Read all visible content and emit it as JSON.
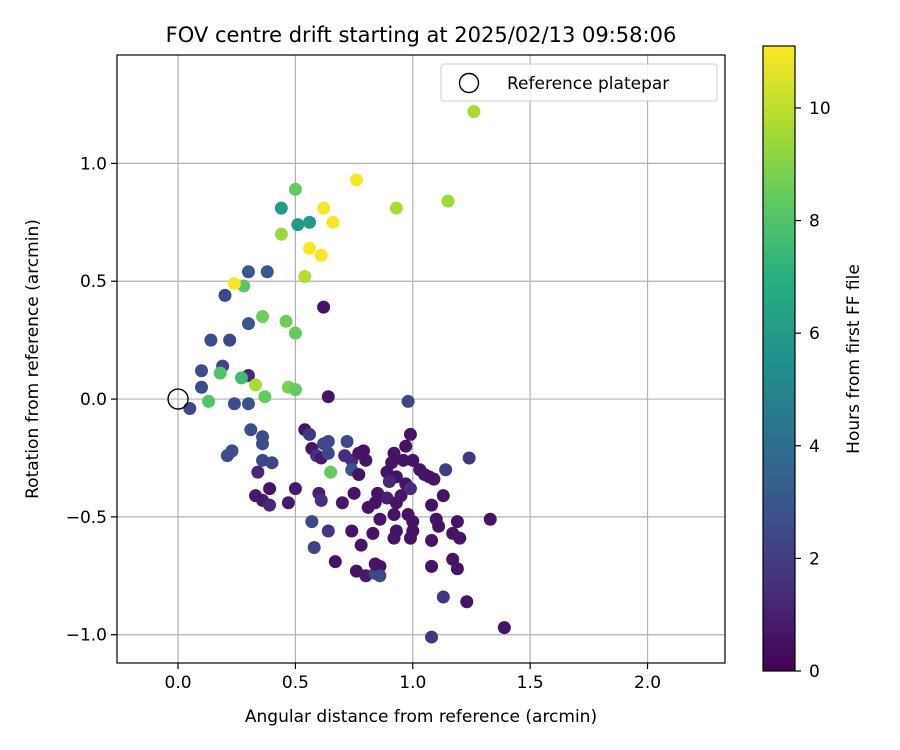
{
  "chart_data": {
    "type": "scatter",
    "title": "FOV centre drift starting at 2025/02/13 09:58:06",
    "xlabel": "Angular distance from reference (arcmin)",
    "ylabel": "Rotation from reference (arcmin)",
    "xlim": [
      -0.26,
      2.33
    ],
    "ylim": [
      -1.12,
      1.46
    ],
    "xticks": [
      0.0,
      0.5,
      1.0,
      1.5,
      2.0
    ],
    "xtick_labels": [
      "0.0",
      "0.5",
      "1.0",
      "1.5",
      "2.0"
    ],
    "yticks": [
      -1.0,
      -0.5,
      0.0,
      0.5,
      1.0
    ],
    "ytick_labels": [
      "−1.0",
      "−0.5",
      "0.0",
      "0.5",
      "1.0"
    ],
    "grid": true,
    "legend": {
      "placement": "top-right",
      "entries": [
        "Reference platepar"
      ]
    },
    "reference_point": {
      "x": 0.0,
      "y": 0.0
    },
    "colorbar": {
      "label": "Hours from first FF file",
      "range": [
        0,
        11.1
      ],
      "ticks": [
        0,
        2,
        4,
        6,
        8,
        10
      ],
      "tick_labels": [
        "0",
        "2",
        "4",
        "6",
        "8",
        "10"
      ],
      "colormap": "viridis"
    },
    "points": [
      {
        "x": 0.62,
        "y": 0.39,
        "h": 0.6
      },
      {
        "x": 0.64,
        "y": 0.01,
        "h": 0.6
      },
      {
        "x": 0.98,
        "y": -0.01,
        "h": 2.4
      },
      {
        "x": 0.05,
        "y": -0.04,
        "h": 2.4
      },
      {
        "x": 0.1,
        "y": 0.05,
        "h": 2.6
      },
      {
        "x": 0.1,
        "y": 0.12,
        "h": 2.6
      },
      {
        "x": 0.14,
        "y": 0.25,
        "h": 2.6
      },
      {
        "x": 0.22,
        "y": 0.25,
        "h": 2.4
      },
      {
        "x": 0.19,
        "y": 0.14,
        "h": 2.2
      },
      {
        "x": 0.2,
        "y": 0.44,
        "h": 2.4
      },
      {
        "x": 0.3,
        "y": 0.54,
        "h": 3.0
      },
      {
        "x": 0.38,
        "y": 0.54,
        "h": 3.0
      },
      {
        "x": 0.3,
        "y": 0.32,
        "h": 3.0
      },
      {
        "x": 0.3,
        "y": 0.1,
        "h": 1.2
      },
      {
        "x": 0.3,
        "y": -0.02,
        "h": 2.8
      },
      {
        "x": 0.24,
        "y": -0.02,
        "h": 2.6
      },
      {
        "x": 0.31,
        "y": -0.13,
        "h": 2.6
      },
      {
        "x": 0.36,
        "y": -0.16,
        "h": 2.6
      },
      {
        "x": 0.36,
        "y": -0.19,
        "h": 2.6
      },
      {
        "x": 0.23,
        "y": -0.22,
        "h": 2.6
      },
      {
        "x": 0.21,
        "y": -0.24,
        "h": 2.6
      },
      {
        "x": 0.36,
        "y": -0.26,
        "h": 2.4
      },
      {
        "x": 0.4,
        "y": -0.27,
        "h": 2.4
      },
      {
        "x": 0.34,
        "y": -0.31,
        "h": 1.2
      },
      {
        "x": 0.33,
        "y": -0.41,
        "h": 0.8
      },
      {
        "x": 0.36,
        "y": -0.43,
        "h": 0.8
      },
      {
        "x": 0.39,
        "y": -0.45,
        "h": 1.2
      },
      {
        "x": 0.39,
        "y": -0.38,
        "h": 0.6
      },
      {
        "x": 0.47,
        "y": -0.44,
        "h": 0.8
      },
      {
        "x": 0.5,
        "y": -0.38,
        "h": 0.8
      },
      {
        "x": 0.54,
        "y": -0.13,
        "h": 0.6
      },
      {
        "x": 0.56,
        "y": -0.15,
        "h": 1.8
      },
      {
        "x": 0.57,
        "y": -0.21,
        "h": 0.6
      },
      {
        "x": 0.59,
        "y": -0.24,
        "h": 1.6
      },
      {
        "x": 0.62,
        "y": -0.19,
        "h": 2.4
      },
      {
        "x": 0.61,
        "y": -0.25,
        "h": 0.8
      },
      {
        "x": 0.64,
        "y": -0.18,
        "h": 2.4
      },
      {
        "x": 0.64,
        "y": -0.23,
        "h": 2.4
      },
      {
        "x": 0.6,
        "y": -0.4,
        "h": 1.0
      },
      {
        "x": 0.61,
        "y": -0.43,
        "h": 1.4
      },
      {
        "x": 0.57,
        "y": -0.52,
        "h": 2.4
      },
      {
        "x": 0.58,
        "y": -0.63,
        "h": 2.2
      },
      {
        "x": 0.64,
        "y": -0.56,
        "h": 1.6
      },
      {
        "x": 0.67,
        "y": -0.69,
        "h": 0.6
      },
      {
        "x": 0.7,
        "y": -0.44,
        "h": 0.8
      },
      {
        "x": 0.71,
        "y": -0.24,
        "h": 1.4
      },
      {
        "x": 0.72,
        "y": -0.18,
        "h": 2.4
      },
      {
        "x": 0.74,
        "y": -0.26,
        "h": 1.4
      },
      {
        "x": 0.74,
        "y": -0.3,
        "h": 2.8
      },
      {
        "x": 0.77,
        "y": -0.23,
        "h": 0.6
      },
      {
        "x": 0.77,
        "y": -0.32,
        "h": 0.6
      },
      {
        "x": 0.8,
        "y": -0.26,
        "h": 0.6
      },
      {
        "x": 0.79,
        "y": -0.22,
        "h": 0.6
      },
      {
        "x": 0.75,
        "y": -0.4,
        "h": 0.6
      },
      {
        "x": 0.74,
        "y": -0.56,
        "h": 0.6
      },
      {
        "x": 0.78,
        "y": -0.62,
        "h": 0.6
      },
      {
        "x": 0.76,
        "y": -0.73,
        "h": 0.6
      },
      {
        "x": 0.8,
        "y": -0.75,
        "h": 0.8
      },
      {
        "x": 0.84,
        "y": -0.74,
        "h": 2.2
      },
      {
        "x": 0.84,
        "y": -0.7,
        "h": 0.6
      },
      {
        "x": 0.86,
        "y": -0.71,
        "h": 0.6
      },
      {
        "x": 0.86,
        "y": -0.75,
        "h": 2.4
      },
      {
        "x": 0.83,
        "y": -0.57,
        "h": 0.6
      },
      {
        "x": 0.81,
        "y": -0.46,
        "h": 0.6
      },
      {
        "x": 0.84,
        "y": -0.44,
        "h": 0.6
      },
      {
        "x": 0.85,
        "y": -0.4,
        "h": 0.6
      },
      {
        "x": 0.86,
        "y": -0.51,
        "h": 0.6
      },
      {
        "x": 0.89,
        "y": -0.42,
        "h": 1.0
      },
      {
        "x": 0.89,
        "y": -0.31,
        "h": 0.6
      },
      {
        "x": 0.91,
        "y": -0.27,
        "h": 0.6
      },
      {
        "x": 0.92,
        "y": -0.23,
        "h": 0.6
      },
      {
        "x": 0.93,
        "y": -0.33,
        "h": 0.6
      },
      {
        "x": 0.9,
        "y": -0.35,
        "h": 1.2
      },
      {
        "x": 0.93,
        "y": -0.44,
        "h": 0.6
      },
      {
        "x": 0.95,
        "y": -0.41,
        "h": 0.8
      },
      {
        "x": 0.96,
        "y": -0.26,
        "h": 0.6
      },
      {
        "x": 0.97,
        "y": -0.2,
        "h": 0.6
      },
      {
        "x": 0.99,
        "y": -0.15,
        "h": 0.6
      },
      {
        "x": 1.0,
        "y": -0.26,
        "h": 0.6
      },
      {
        "x": 0.97,
        "y": -0.36,
        "h": 0.6
      },
      {
        "x": 0.99,
        "y": -0.38,
        "h": 1.4
      },
      {
        "x": 0.92,
        "y": -0.59,
        "h": 0.6
      },
      {
        "x": 0.93,
        "y": -0.56,
        "h": 0.6
      },
      {
        "x": 0.92,
        "y": -0.49,
        "h": 0.6
      },
      {
        "x": 0.98,
        "y": -0.49,
        "h": 0.6
      },
      {
        "x": 1.0,
        "y": -0.52,
        "h": 0.6
      },
      {
        "x": 1.0,
        "y": -0.56,
        "h": 0.6
      },
      {
        "x": 0.99,
        "y": -0.59,
        "h": 0.6
      },
      {
        "x": 1.03,
        "y": -0.3,
        "h": 0.6
      },
      {
        "x": 1.05,
        "y": -0.32,
        "h": 0.6
      },
      {
        "x": 1.07,
        "y": -0.33,
        "h": 0.6
      },
      {
        "x": 1.09,
        "y": -0.34,
        "h": 0.6
      },
      {
        "x": 1.08,
        "y": -0.45,
        "h": 0.6
      },
      {
        "x": 1.1,
        "y": -0.51,
        "h": 0.6
      },
      {
        "x": 1.11,
        "y": -0.54,
        "h": 0.6
      },
      {
        "x": 1.08,
        "y": -0.6,
        "h": 0.6
      },
      {
        "x": 1.08,
        "y": -0.71,
        "h": 0.6
      },
      {
        "x": 1.13,
        "y": -0.41,
        "h": 0.6
      },
      {
        "x": 1.14,
        "y": -0.3,
        "h": 2.0
      },
      {
        "x": 1.17,
        "y": -0.57,
        "h": 0.6
      },
      {
        "x": 1.19,
        "y": -0.52,
        "h": 0.6
      },
      {
        "x": 1.2,
        "y": -0.59,
        "h": 0.6
      },
      {
        "x": 1.17,
        "y": -0.68,
        "h": 0.6
      },
      {
        "x": 1.19,
        "y": -0.72,
        "h": 0.6
      },
      {
        "x": 1.13,
        "y": -0.84,
        "h": 1.8
      },
      {
        "x": 1.23,
        "y": -0.86,
        "h": 0.6
      },
      {
        "x": 1.24,
        "y": -0.25,
        "h": 1.8
      },
      {
        "x": 1.33,
        "y": -0.51,
        "h": 0.6
      },
      {
        "x": 1.39,
        "y": -0.97,
        "h": 0.6
      },
      {
        "x": 1.08,
        "y": -1.01,
        "h": 1.8
      },
      {
        "x": 0.44,
        "y": 0.81,
        "h": 6.0
      },
      {
        "x": 0.51,
        "y": 0.74,
        "h": 6.0
      },
      {
        "x": 0.56,
        "y": 0.75,
        "h": 6.0
      },
      {
        "x": 0.5,
        "y": 0.89,
        "h": 8.4
      },
      {
        "x": 0.28,
        "y": 0.48,
        "h": 8.2
      },
      {
        "x": 0.36,
        "y": 0.35,
        "h": 8.6
      },
      {
        "x": 0.46,
        "y": 0.33,
        "h": 8.6
      },
      {
        "x": 0.5,
        "y": 0.28,
        "h": 8.4
      },
      {
        "x": 0.18,
        "y": 0.11,
        "h": 8.0
      },
      {
        "x": 0.13,
        "y": -0.01,
        "h": 8.0
      },
      {
        "x": 0.27,
        "y": 0.09,
        "h": 7.6
      },
      {
        "x": 0.33,
        "y": 0.06,
        "h": 9.6
      },
      {
        "x": 0.37,
        "y": 0.01,
        "h": 8.4
      },
      {
        "x": 0.47,
        "y": 0.05,
        "h": 8.8
      },
      {
        "x": 0.5,
        "y": 0.04,
        "h": 8.4
      },
      {
        "x": 0.65,
        "y": -0.31,
        "h": 8.4
      },
      {
        "x": 0.44,
        "y": 0.7,
        "h": 9.4
      },
      {
        "x": 0.54,
        "y": 0.52,
        "h": 9.8
      },
      {
        "x": 0.93,
        "y": 0.81,
        "h": 9.6
      },
      {
        "x": 1.15,
        "y": 0.84,
        "h": 9.4
      },
      {
        "x": 1.26,
        "y": 1.22,
        "h": 9.6
      },
      {
        "x": 0.24,
        "y": 0.49,
        "h": 11.0
      },
      {
        "x": 0.56,
        "y": 0.64,
        "h": 11.0
      },
      {
        "x": 0.61,
        "y": 0.61,
        "h": 11.0
      },
      {
        "x": 0.62,
        "y": 0.81,
        "h": 11.0
      },
      {
        "x": 0.66,
        "y": 0.75,
        "h": 11.0
      },
      {
        "x": 0.76,
        "y": 0.93,
        "h": 11.0
      }
    ]
  }
}
